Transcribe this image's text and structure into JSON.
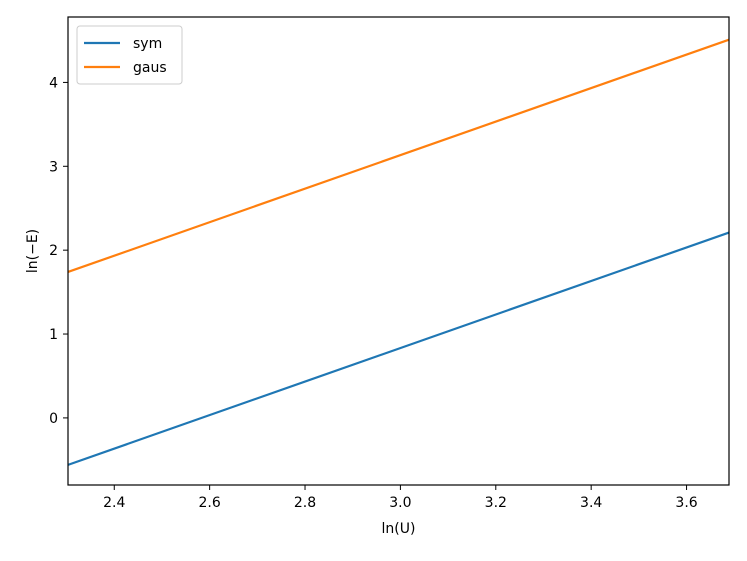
{
  "chart_data": {
    "type": "line",
    "title": "",
    "xlabel": "ln(U)",
    "ylabel": "ln(−E)",
    "xlim": [
      2.303,
      3.689
    ],
    "ylim": [
      -0.8,
      4.78
    ],
    "x_ticks": [
      {
        "value": 2.4,
        "label": "2.4"
      },
      {
        "value": 2.6,
        "label": "2.6"
      },
      {
        "value": 2.8,
        "label": "2.8"
      },
      {
        "value": 3.0,
        "label": "3.0"
      },
      {
        "value": 3.2,
        "label": "3.2"
      },
      {
        "value": 3.4,
        "label": "3.4"
      },
      {
        "value": 3.6,
        "label": "3.6"
      }
    ],
    "y_ticks": [
      {
        "value": 0,
        "label": "0"
      },
      {
        "value": 1,
        "label": "1"
      },
      {
        "value": 2,
        "label": "2"
      },
      {
        "value": 3,
        "label": "3"
      },
      {
        "value": 4,
        "label": "4"
      }
    ],
    "legend_position": "top-left",
    "grid": false,
    "series": [
      {
        "name": "sym",
        "color": "#1f77b4",
        "x": [
          2.303,
          3.689
        ],
        "y": [
          -0.56,
          2.21
        ]
      },
      {
        "name": "gaus",
        "color": "#ff7f0e",
        "x": [
          2.303,
          3.689
        ],
        "y": [
          1.74,
          4.51
        ]
      }
    ]
  }
}
